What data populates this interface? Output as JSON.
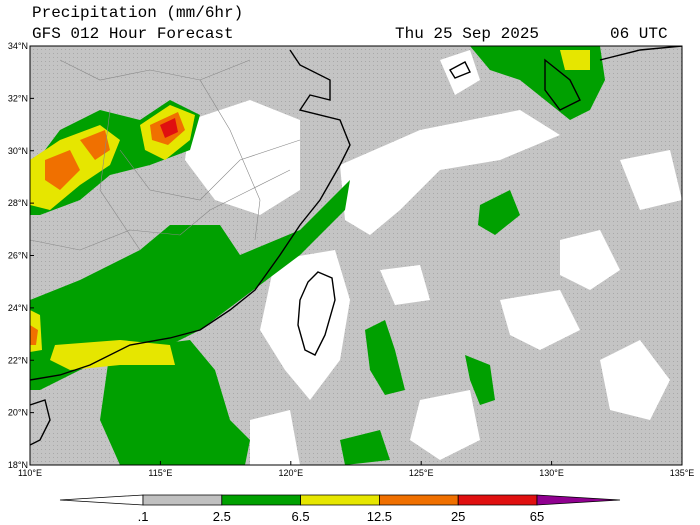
{
  "header": {
    "title": "Precipitation (mm/6hr)",
    "subtitle": "GFS 012 Hour Forecast",
    "date": "Thu 25 Sep 2025",
    "time": "06 UTC"
  },
  "map": {
    "lonlim": [
      110,
      135
    ],
    "latlim": [
      18,
      34
    ],
    "lon_ticks": [
      {
        "value": 110,
        "label": "110°E"
      },
      {
        "value": 115,
        "label": "115°E"
      },
      {
        "value": 120,
        "label": "120°E"
      },
      {
        "value": 125,
        "label": "125°E"
      },
      {
        "value": 130,
        "label": "130°E"
      },
      {
        "value": 135,
        "label": "135°E"
      }
    ],
    "lat_ticks": [
      {
        "value": 18,
        "label": "18°N"
      },
      {
        "value": 20,
        "label": "20°N"
      },
      {
        "value": 22,
        "label": "22°N"
      },
      {
        "value": 24,
        "label": "24°N"
      },
      {
        "value": 26,
        "label": "26°N"
      },
      {
        "value": 28,
        "label": "28°N"
      },
      {
        "value": 30,
        "label": "30°N"
      },
      {
        "value": 32,
        "label": "32°N"
      },
      {
        "value": 34,
        "label": "34°N"
      }
    ]
  },
  "colorbar": {
    "labels": [
      ".1",
      "2.5",
      "6.5",
      "12.5",
      "25",
      "65"
    ],
    "colors": [
      "#ffffff",
      "#c0c0c0",
      "#00a000",
      "#e6e600",
      "#f07000",
      "#e01010",
      "#900090"
    ]
  }
}
